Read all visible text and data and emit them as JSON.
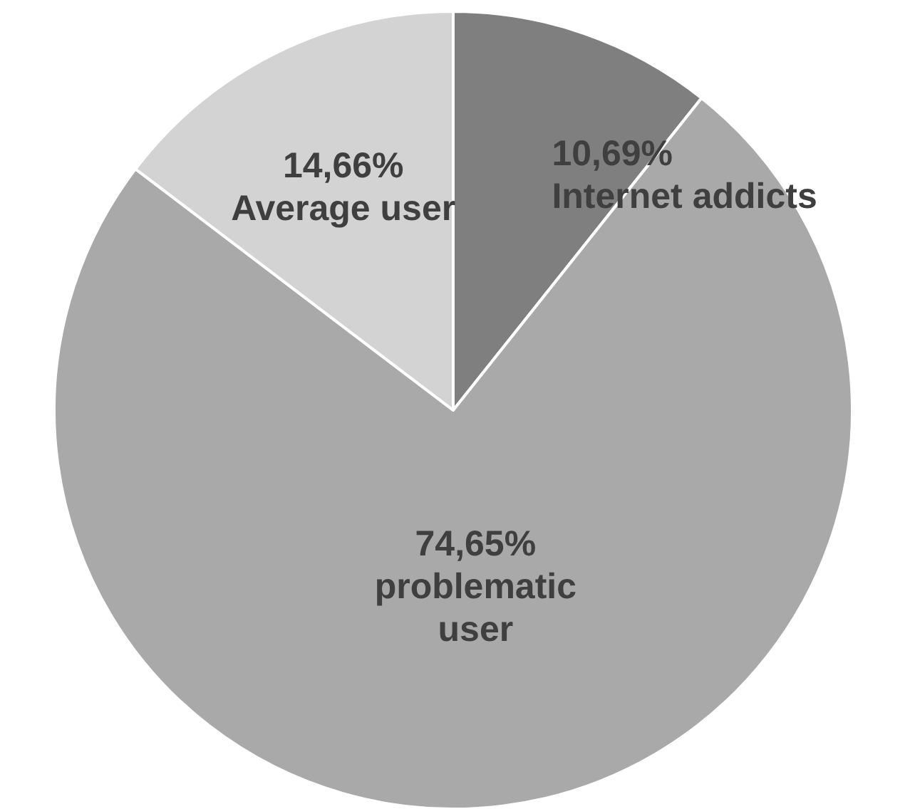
{
  "chart_data": {
    "type": "pie",
    "categories": [
      "Internet addicts",
      "problematic user",
      "Average user"
    ],
    "values": [
      10.69,
      74.65,
      14.66
    ],
    "value_labels": [
      "10,69%",
      "74,65%",
      "14,66%"
    ],
    "colors": [
      "#7f7f7f",
      "#a9a9a9",
      "#d3d3d3"
    ],
    "legend": false
  }
}
